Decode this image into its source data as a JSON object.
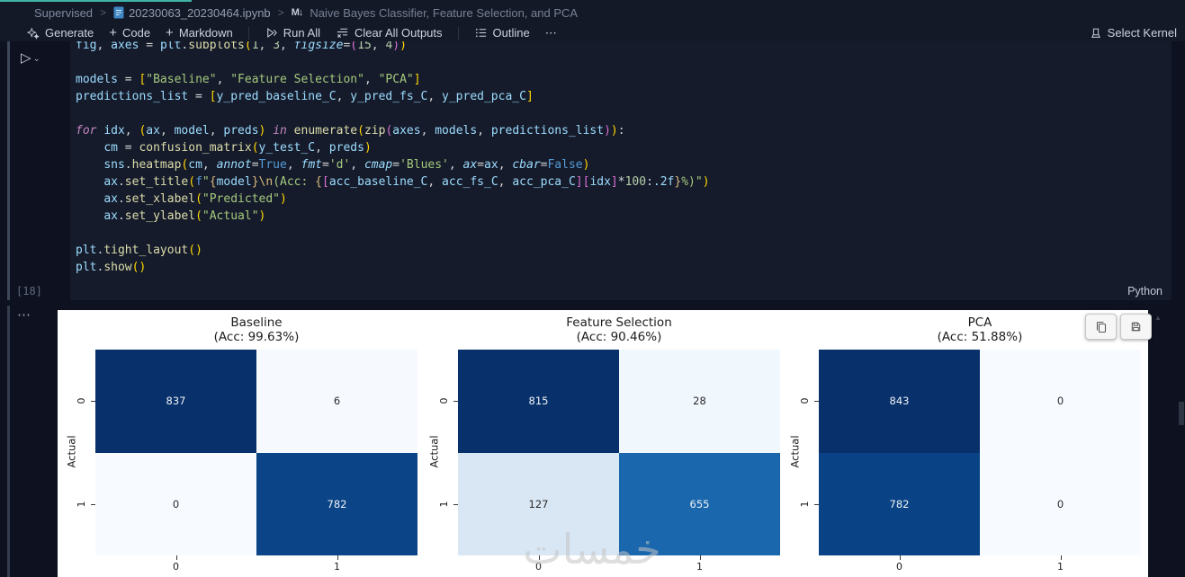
{
  "breadcrumb": {
    "folder": "Supervised",
    "sep": ">",
    "file": "20230063_20230464.ipynb",
    "markdown_icon": "M↓",
    "section": "Naive Bayes Classifier, Feature Selection, and PCA"
  },
  "toolbar": {
    "plus": "+",
    "generate": "Generate",
    "code": "Code",
    "markdown": "Markdown",
    "run_all": "Run All",
    "clear_all": "Clear All Outputs",
    "outline": "Outline",
    "more": "⋯",
    "select_kernel": "Select Kernel"
  },
  "cell": {
    "run_icon": "▷",
    "run_dropdown": "⌄",
    "execution_count": "[18]",
    "language": "Python",
    "output_more": "⋯",
    "code_lines": [
      [
        [
          "v",
          "fig"
        ],
        [
          "x",
          ", "
        ],
        [
          "v",
          "axes"
        ],
        [
          "x",
          " = "
        ],
        [
          "v",
          "plt"
        ],
        [
          "x",
          "."
        ],
        [
          "f",
          "subplots"
        ],
        [
          "1",
          "("
        ],
        [
          "n",
          "1"
        ],
        [
          "x",
          ", "
        ],
        [
          "n",
          "3"
        ],
        [
          "x",
          ", "
        ],
        [
          "m",
          "figsize"
        ],
        [
          "x",
          "="
        ],
        [
          "2",
          "("
        ],
        [
          "n",
          "15"
        ],
        [
          "x",
          ", "
        ],
        [
          "n",
          "4"
        ],
        [
          "2",
          ")"
        ],
        [
          "1",
          ")"
        ]
      ],
      [],
      [
        [
          "v",
          "models"
        ],
        [
          "x",
          " = "
        ],
        [
          "1",
          "["
        ],
        [
          "s",
          "\"Baseline\""
        ],
        [
          "x",
          ", "
        ],
        [
          "s",
          "\"Feature Selection\""
        ],
        [
          "x",
          ", "
        ],
        [
          "s",
          "\"PCA\""
        ],
        [
          "1",
          "]"
        ]
      ],
      [
        [
          "v",
          "predictions_list"
        ],
        [
          "x",
          " = "
        ],
        [
          "1",
          "["
        ],
        [
          "v",
          "y_pred_baseline_C"
        ],
        [
          "x",
          ", "
        ],
        [
          "v",
          "y_pred_fs_C"
        ],
        [
          "x",
          ", "
        ],
        [
          "v",
          "y_pred_pca_C"
        ],
        [
          "1",
          "]"
        ]
      ],
      [],
      [
        [
          "k",
          "for"
        ],
        [
          "x",
          " "
        ],
        [
          "v",
          "idx"
        ],
        [
          "x",
          ", "
        ],
        [
          "1",
          "("
        ],
        [
          "v",
          "ax"
        ],
        [
          "x",
          ", "
        ],
        [
          "v",
          "model"
        ],
        [
          "x",
          ", "
        ],
        [
          "v",
          "preds"
        ],
        [
          "1",
          ")"
        ],
        [
          "x",
          " "
        ],
        [
          "k",
          "in"
        ],
        [
          "x",
          " "
        ],
        [
          "f",
          "enumerate"
        ],
        [
          "1",
          "("
        ],
        [
          "f",
          "zip"
        ],
        [
          "2",
          "("
        ],
        [
          "v",
          "axes"
        ],
        [
          "x",
          ", "
        ],
        [
          "v",
          "models"
        ],
        [
          "x",
          ", "
        ],
        [
          "v",
          "predictions_list"
        ],
        [
          "2",
          ")"
        ],
        [
          "1",
          ")"
        ],
        [
          "x",
          ":"
        ]
      ],
      [
        [
          "x",
          "    "
        ],
        [
          "v",
          "cm"
        ],
        [
          "x",
          " = "
        ],
        [
          "f",
          "confusion_matrix"
        ],
        [
          "1",
          "("
        ],
        [
          "v",
          "y_test_C"
        ],
        [
          "x",
          ", "
        ],
        [
          "v",
          "preds"
        ],
        [
          "1",
          ")"
        ]
      ],
      [
        [
          "x",
          "    "
        ],
        [
          "v",
          "sns"
        ],
        [
          "x",
          "."
        ],
        [
          "f",
          "heatmap"
        ],
        [
          "1",
          "("
        ],
        [
          "v",
          "cm"
        ],
        [
          "x",
          ", "
        ],
        [
          "m",
          "annot"
        ],
        [
          "x",
          "="
        ],
        [
          "b",
          "True"
        ],
        [
          "x",
          ", "
        ],
        [
          "m",
          "fmt"
        ],
        [
          "x",
          "="
        ],
        [
          "s",
          "'d'"
        ],
        [
          "x",
          ", "
        ],
        [
          "m",
          "cmap"
        ],
        [
          "x",
          "="
        ],
        [
          "s",
          "'Blues'"
        ],
        [
          "x",
          ", "
        ],
        [
          "m",
          "ax"
        ],
        [
          "x",
          "="
        ],
        [
          "v",
          "ax"
        ],
        [
          "x",
          ", "
        ],
        [
          "m",
          "cbar"
        ],
        [
          "x",
          "="
        ],
        [
          "b",
          "False"
        ],
        [
          "1",
          ")"
        ]
      ],
      [
        [
          "x",
          "    "
        ],
        [
          "v",
          "ax"
        ],
        [
          "x",
          "."
        ],
        [
          "f",
          "set_title"
        ],
        [
          "1",
          "("
        ],
        [
          "b",
          "f"
        ],
        [
          "s",
          "\""
        ],
        [
          "e",
          "{"
        ],
        [
          "v",
          "model"
        ],
        [
          "e",
          "}"
        ],
        [
          "e",
          "\\n"
        ],
        [
          "s",
          "(Acc: "
        ],
        [
          "e",
          "{"
        ],
        [
          "2",
          "["
        ],
        [
          "v",
          "acc_baseline_C"
        ],
        [
          "x",
          ", "
        ],
        [
          "v",
          "acc_fs_C"
        ],
        [
          "x",
          ", "
        ],
        [
          "v",
          "acc_pca_C"
        ],
        [
          "2",
          "]"
        ],
        [
          "2",
          "["
        ],
        [
          "v",
          "idx"
        ],
        [
          "2",
          "]"
        ],
        [
          "x",
          "*"
        ],
        [
          "n",
          "100"
        ],
        [
          "x",
          ":"
        ],
        [
          "v",
          ".2f"
        ],
        [
          "e",
          "}"
        ],
        [
          "s",
          "%)\""
        ],
        [
          "1",
          ")"
        ]
      ],
      [
        [
          "x",
          "    "
        ],
        [
          "v",
          "ax"
        ],
        [
          "x",
          "."
        ],
        [
          "f",
          "set_xlabel"
        ],
        [
          "1",
          "("
        ],
        [
          "s",
          "\"Predicted\""
        ],
        [
          "1",
          ")"
        ]
      ],
      [
        [
          "x",
          "    "
        ],
        [
          "v",
          "ax"
        ],
        [
          "x",
          "."
        ],
        [
          "f",
          "set_ylabel"
        ],
        [
          "1",
          "("
        ],
        [
          "s",
          "\"Actual\""
        ],
        [
          "1",
          ")"
        ]
      ],
      [],
      [
        [
          "v",
          "plt"
        ],
        [
          "x",
          "."
        ],
        [
          "f",
          "tight_layout"
        ],
        [
          "1",
          "("
        ],
        [
          "1",
          ")"
        ]
      ],
      [
        [
          "v",
          "plt"
        ],
        [
          "x",
          "."
        ],
        [
          "f",
          "show"
        ],
        [
          "1",
          "("
        ],
        [
          "1",
          ")"
        ]
      ]
    ]
  },
  "output": {
    "collapse_icon": "▲"
  },
  "watermark": "خمسات",
  "colors": {
    "accent_teal": "#3fb3a7",
    "figure_bg": "#ffffff",
    "heatmap_max": "#08306b",
    "heatmap_min": "#f7fbff"
  },
  "chart_data": [
    {
      "type": "heatmap",
      "title": "Baseline",
      "subtitle": "(Acc: 99.63%)",
      "ylabel": "Actual",
      "x_ticks": [
        "0",
        "1"
      ],
      "y_ticks": [
        "0",
        "1"
      ],
      "values": [
        [
          837,
          6
        ],
        [
          0,
          782
        ]
      ],
      "cmap": "Blues",
      "cell_colors": [
        [
          "#08306b",
          "#f6fafe"
        ],
        [
          "#f7fbff",
          "#0b4587"
        ]
      ]
    },
    {
      "type": "heatmap",
      "title": "Feature Selection",
      "subtitle": "(Acc: 90.46%)",
      "ylabel": "Actual",
      "x_ticks": [
        "0",
        "1"
      ],
      "y_ticks": [
        "0",
        "1"
      ],
      "values": [
        [
          815,
          28
        ],
        [
          127,
          655
        ]
      ],
      "cmap": "Blues",
      "cell_colors": [
        [
          "#08306b",
          "#f0f7fd"
        ],
        [
          "#d9e7f5",
          "#1b67ae"
        ]
      ]
    },
    {
      "type": "heatmap",
      "title": "PCA",
      "subtitle": "(Acc: 51.88%)",
      "ylabel": "Actual",
      "x_ticks": [
        "0",
        "1"
      ],
      "y_ticks": [
        "0",
        "1"
      ],
      "values": [
        [
          843,
          0
        ],
        [
          782,
          0
        ]
      ],
      "cmap": "Blues",
      "cell_colors": [
        [
          "#08306b",
          "#f7fbff"
        ],
        [
          "#0a4385",
          "#f7fbff"
        ]
      ]
    }
  ]
}
